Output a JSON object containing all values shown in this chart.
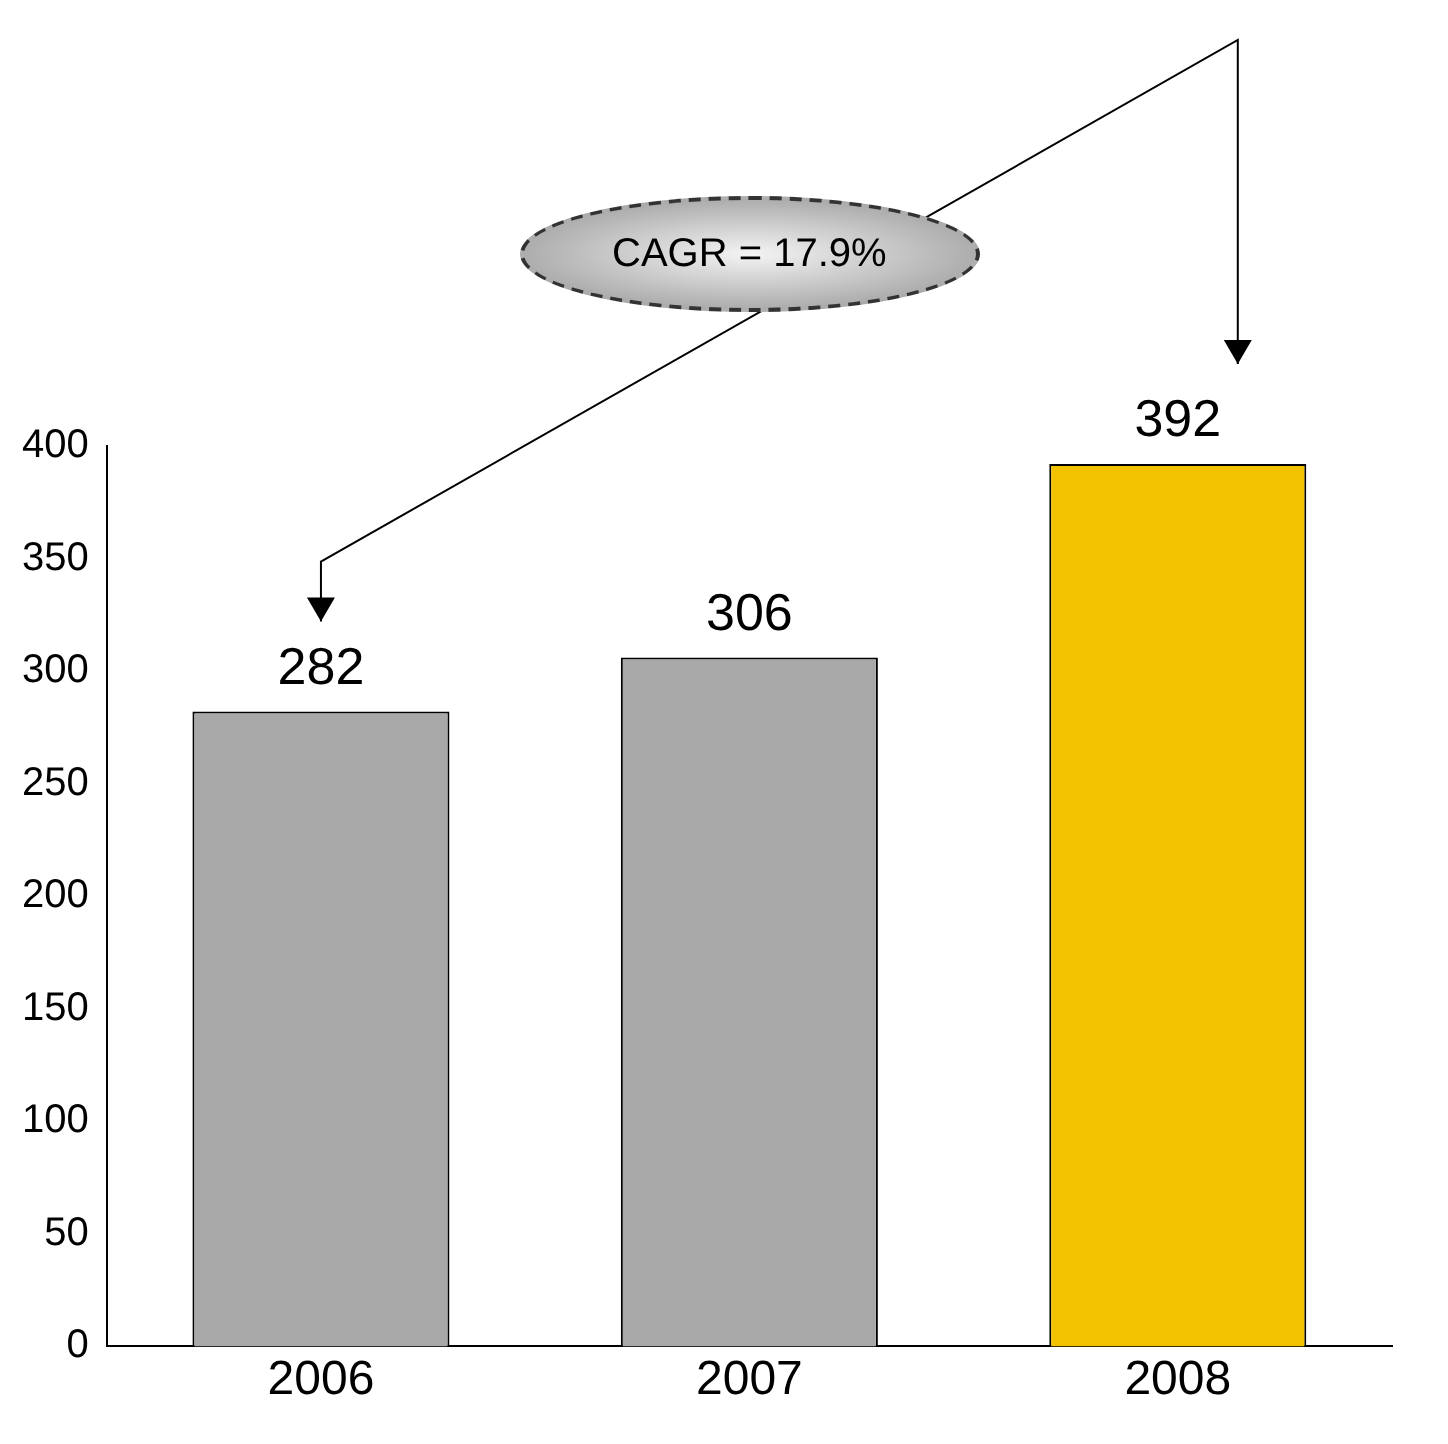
{
  "chart_data": {
    "type": "bar",
    "categories": [
      "2006",
      "2007",
      "2008"
    ],
    "values": [
      282,
      306,
      392
    ],
    "colors": [
      "#a8a8a8",
      "#a8a8a8",
      "#f2c200"
    ],
    "ylim": [
      0,
      400
    ],
    "yticks": [
      0,
      50,
      100,
      150,
      200,
      250,
      300,
      350,
      400
    ],
    "grid": false,
    "legend": false,
    "data_labels": true,
    "annotations": [
      "CAGR = 17.9%"
    ]
  }
}
